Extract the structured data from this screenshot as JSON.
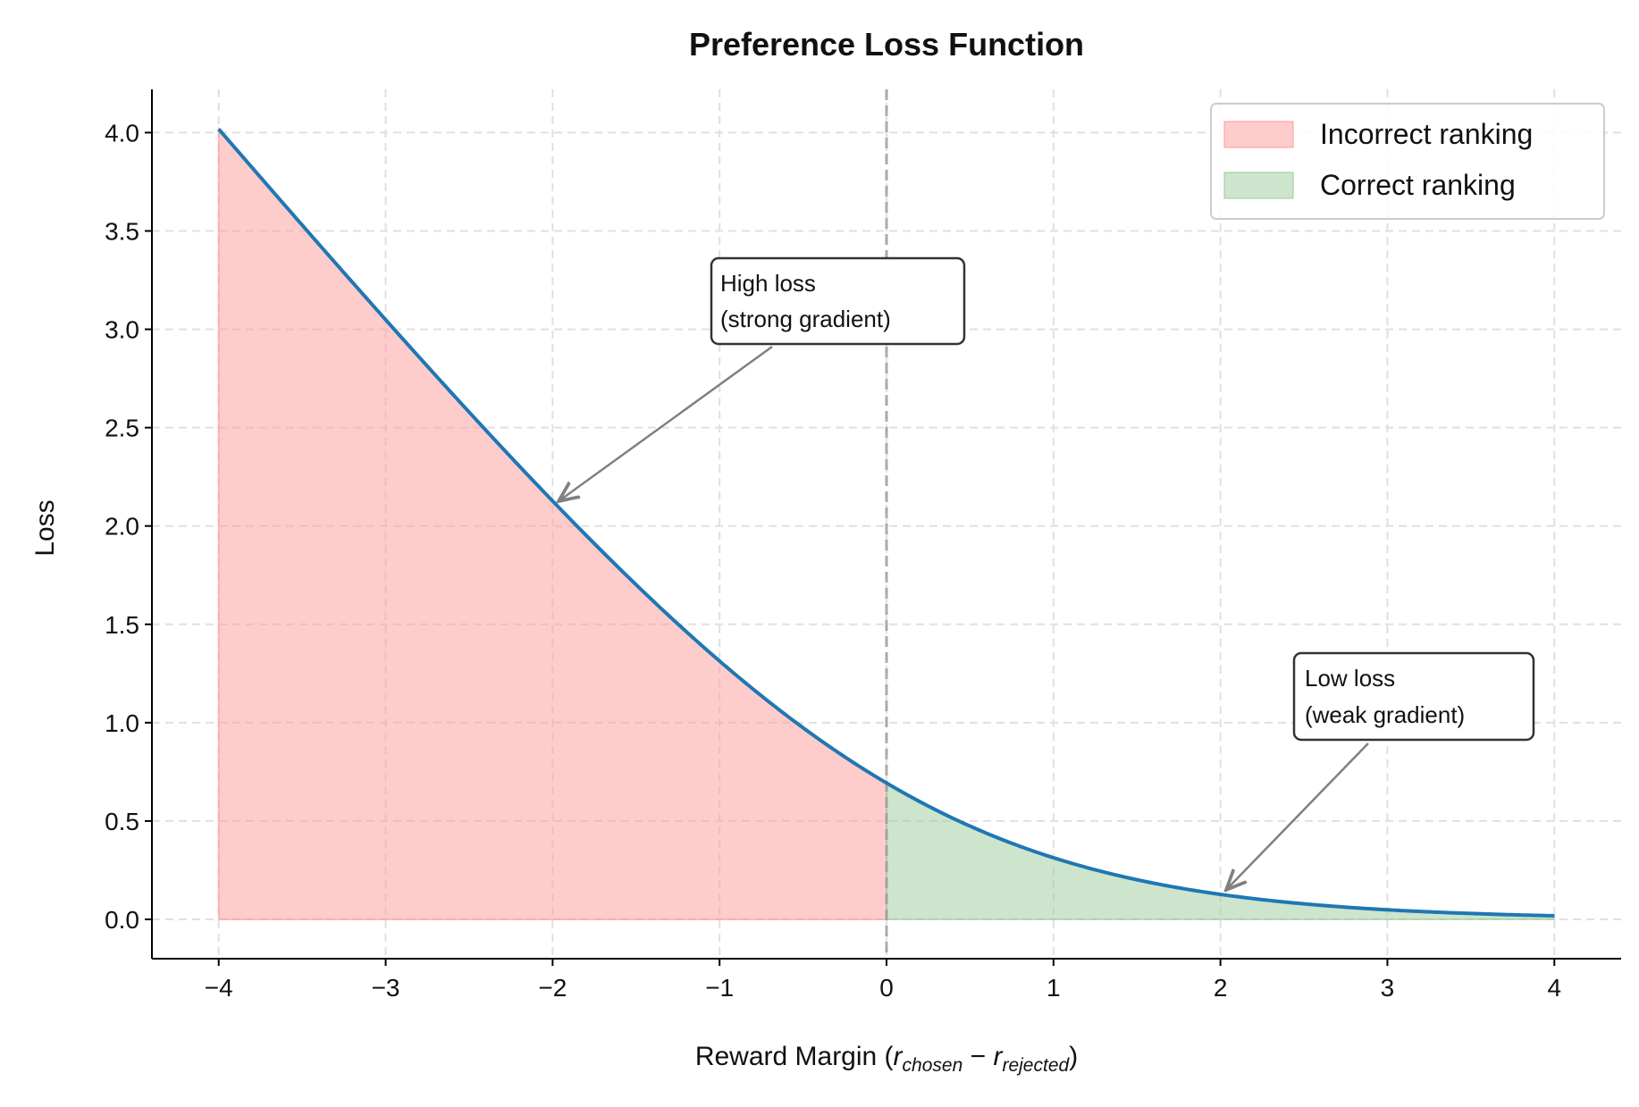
{
  "chart_data": {
    "type": "area",
    "title": "Preference Loss Function",
    "xlabel_parts": {
      "prefix": "Reward Margin (",
      "r1": "r",
      "sub1": "chosen",
      "minus": " − ",
      "r2": "r",
      "sub2": "rejected",
      "suffix": ")"
    },
    "ylabel": "Loss",
    "xlim": [
      -4.4,
      4.4
    ],
    "ylim": [
      -0.2,
      4.22
    ],
    "xticks": [
      -4,
      -3,
      -2,
      -1,
      0,
      1,
      2,
      3,
      4
    ],
    "xtick_labels": [
      "−4",
      "−3",
      "−2",
      "−1",
      "0",
      "1",
      "2",
      "3",
      "4"
    ],
    "yticks": [
      0,
      0.5,
      1,
      1.5,
      2,
      2.5,
      3,
      3.5,
      4
    ],
    "ytick_labels": [
      "0.0",
      "0.5",
      "1.0",
      "1.5",
      "2.0",
      "2.5",
      "3.0",
      "3.5",
      "4.0"
    ],
    "grid": true,
    "curve": {
      "function": "log(1 + exp(-x))",
      "x_range": [
        -4,
        4
      ],
      "color": "#1f77b4"
    },
    "regions": [
      {
        "name": "Incorrect ranking",
        "x_range": [
          -4,
          0
        ],
        "color": "#ff9999"
      },
      {
        "name": "Correct ranking",
        "x_range": [
          0,
          4
        ],
        "color": "#99cc99"
      }
    ],
    "vline": {
      "x": 0,
      "color": "#999999",
      "style": "dashed"
    },
    "legend": {
      "placement": "top-right",
      "entries": [
        "Incorrect ranking",
        "Correct ranking"
      ]
    },
    "annotations": [
      {
        "lines": [
          "High loss",
          "(strong gradient)"
        ],
        "point": [
          -2,
          2.127
        ]
      },
      {
        "lines": [
          "Low loss",
          "(weak gradient)"
        ],
        "point": [
          2,
          0.127
        ]
      }
    ]
  }
}
